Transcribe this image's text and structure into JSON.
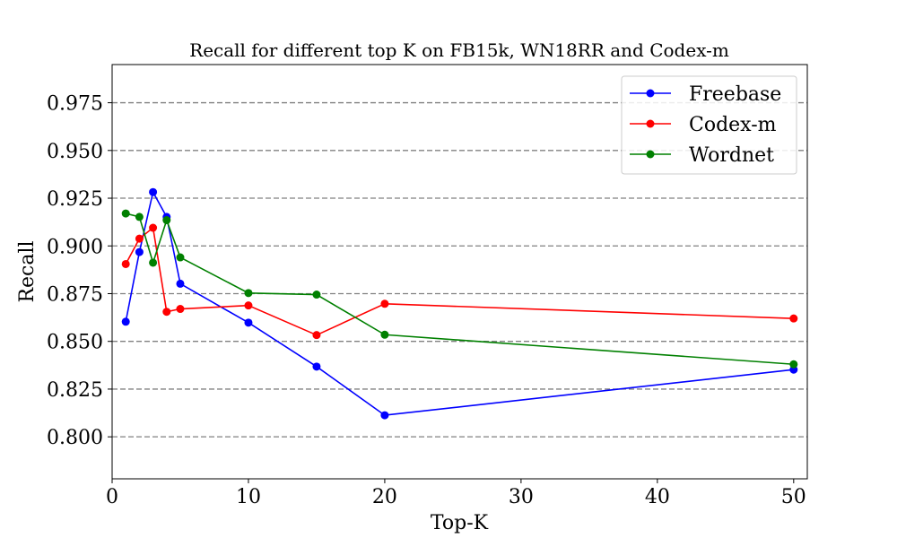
{
  "chart_data": {
    "type": "line",
    "title": "Recall for different top K on FB15k, WN18RR and Codex-m",
    "xlabel": "Top-K",
    "ylabel": "Recall",
    "xlim": [
      0,
      51
    ],
    "ylim": [
      0.778,
      0.995
    ],
    "x_ticks": [
      0,
      10,
      20,
      30,
      40,
      50
    ],
    "y_ticks": [
      0.8,
      0.825,
      0.85,
      0.875,
      0.9,
      0.925,
      0.95,
      0.975
    ],
    "x_tick_labels": [
      "0",
      "10",
      "20",
      "30",
      "40",
      "50"
    ],
    "y_tick_labels": [
      "0.800",
      "0.825",
      "0.850",
      "0.875",
      "0.900",
      "0.925",
      "0.950",
      "0.975"
    ],
    "grid": "horizontal dashed",
    "legend_position": "upper right",
    "series": [
      {
        "name": "Freebase",
        "color": "#0000ff",
        "x": [
          1,
          2,
          3,
          4,
          5,
          10,
          15,
          20,
          50
        ],
        "y": [
          0.8603,
          0.8968,
          0.9282,
          0.9152,
          0.8802,
          0.8598,
          0.8368,
          0.8113,
          0.8352
        ]
      },
      {
        "name": "Codex-m",
        "color": "#ff0000",
        "x": [
          1,
          2,
          3,
          4,
          5,
          10,
          15,
          20,
          50
        ],
        "y": [
          0.8905,
          0.9038,
          0.9095,
          0.8655,
          0.867,
          0.8688,
          0.8533,
          0.8697,
          0.862
        ]
      },
      {
        "name": "Wordnet",
        "color": "#008000",
        "x": [
          1,
          2,
          3,
          4,
          5,
          10,
          15,
          20,
          50
        ],
        "y": [
          0.917,
          0.9152,
          0.8912,
          0.9135,
          0.894,
          0.8753,
          0.8745,
          0.8535,
          0.838
        ]
      }
    ]
  }
}
